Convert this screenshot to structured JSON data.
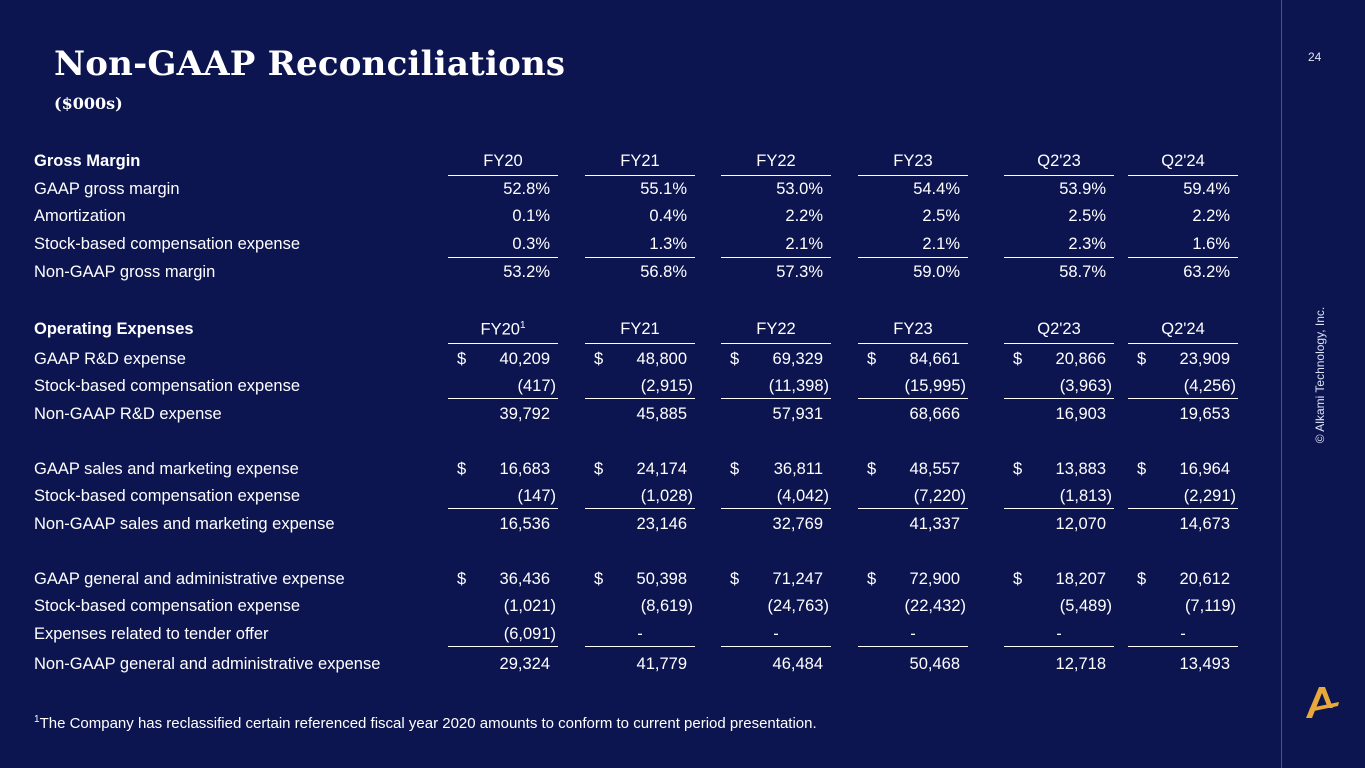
{
  "title": "Non-GAAP Reconciliations",
  "subtitle": "($000s)",
  "page_number": "24",
  "copyright": "© Alkami Technology, Inc.",
  "footnote_marker": "1",
  "footnote": "The Company has reclassified certain referenced fiscal year 2020 amounts to conform to current period presentation.",
  "gross_margin": {
    "title": "Gross Margin",
    "headers": [
      "FY20",
      "FY21",
      "FY22",
      "FY23",
      "Q2'23",
      "Q2'24"
    ],
    "rows": [
      {
        "label": "GAAP gross margin",
        "values": [
          "52.8%",
          "55.1%",
          "53.0%",
          "54.4%",
          "53.9%",
          "59.4%"
        ]
      },
      {
        "label": "Amortization",
        "values": [
          "0.1%",
          "0.4%",
          "2.2%",
          "2.5%",
          "2.5%",
          "2.2%"
        ]
      },
      {
        "label": "Stock-based compensation expense",
        "values": [
          "0.3%",
          "1.3%",
          "2.1%",
          "2.1%",
          "2.3%",
          "1.6%"
        ]
      },
      {
        "label": "Non-GAAP gross margin",
        "values": [
          "53.2%",
          "56.8%",
          "57.3%",
          "59.0%",
          "58.7%",
          "63.2%"
        ]
      }
    ]
  },
  "operating_expenses": {
    "title": "Operating Expenses",
    "headers": [
      "FY20",
      "FY21",
      "FY22",
      "FY23",
      "Q2'23",
      "Q2'24"
    ],
    "header_superscript": "1",
    "currency_symbol": "$",
    "rd": [
      {
        "label": "GAAP R&D expense",
        "values": [
          "40,209",
          "48,800",
          "69,329",
          "84,661",
          "20,866",
          "23,909"
        ]
      },
      {
        "label": "Stock-based compensation expense",
        "values": [
          "(417)",
          "(2,915)",
          "(11,398)",
          "(15,995)",
          "(3,963)",
          "(4,256)"
        ]
      },
      {
        "label": "Non-GAAP R&D expense",
        "values": [
          "39,792",
          "45,885",
          "57,931",
          "68,666",
          "16,903",
          "19,653"
        ]
      }
    ],
    "sm": [
      {
        "label": "GAAP sales and marketing expense",
        "values": [
          "16,683",
          "24,174",
          "36,811",
          "48,557",
          "13,883",
          "16,964"
        ]
      },
      {
        "label": "Stock-based compensation expense",
        "values": [
          "(147)",
          "(1,028)",
          "(4,042)",
          "(7,220)",
          "(1,813)",
          "(2,291)"
        ]
      },
      {
        "label": "Non-GAAP sales and marketing expense",
        "values": [
          "16,536",
          "23,146",
          "32,769",
          "41,337",
          "12,070",
          "14,673"
        ]
      }
    ],
    "ga": [
      {
        "label": "GAAP general and administrative expense",
        "values": [
          "36,436",
          "50,398",
          "71,247",
          "72,900",
          "18,207",
          "20,612"
        ]
      },
      {
        "label": "Stock-based compensation expense",
        "values": [
          "(1,021)",
          "(8,619)",
          "(24,763)",
          "(22,432)",
          "(5,489)",
          "(7,119)"
        ]
      },
      {
        "label": "Expenses related to tender offer",
        "values": [
          "(6,091)",
          "-",
          "-",
          "-",
          "-",
          "-"
        ]
      },
      {
        "label": "Non-GAAP general and administrative expense",
        "values": [
          "29,324",
          "41,779",
          "46,484",
          "50,468",
          "12,718",
          "13,493"
        ]
      }
    ]
  },
  "colors": {
    "background": "#0c1550",
    "accent": "#e8a83a"
  }
}
